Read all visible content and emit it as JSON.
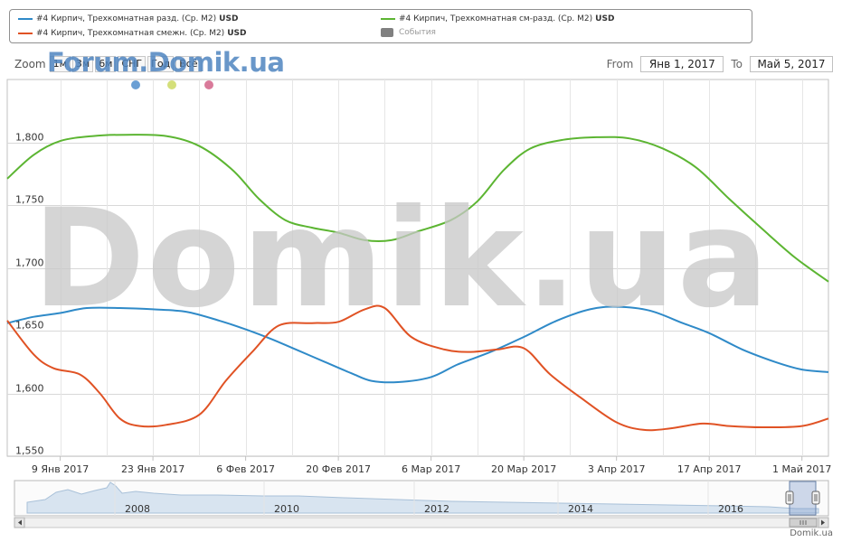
{
  "legend": {
    "items": [
      {
        "label": "#4 Кирпич, Трехкомнатная разд. (Ср. М2)",
        "unit": "USD",
        "color": "#2f8ac8",
        "marker": "line"
      },
      {
        "label": "#4 Кирпич, Трехкомнатная смежн. (Ср. М2)",
        "unit": "USD",
        "color": "#e05224",
        "marker": "line"
      },
      {
        "label": "#4 Кирпич, Трехкомнатная см-разд. (Ср. М2)",
        "unit": "USD",
        "color": "#5cb532",
        "marker": "line"
      },
      {
        "label": "События",
        "unit": "",
        "color": "#808080",
        "marker": "box"
      }
    ]
  },
  "zoom": {
    "label": "Zoom",
    "buttons": [
      "1м",
      "3м",
      "6м",
      "СНГ",
      "Год",
      "Всё"
    ]
  },
  "watermarks": {
    "top": "Forum.Domik.ua",
    "center": "Domik.ua"
  },
  "range": {
    "from_label": "From",
    "from_value": "Янв 1, 2017",
    "to_label": "To",
    "to_value": "Май 5, 2017"
  },
  "event_dots": [
    "#6a9fd4",
    "#d4df7a",
    "#d97a9a"
  ],
  "credit": "Domik.ua",
  "chart_data": {
    "type": "line",
    "x_start": "2017-01-01",
    "x_end": "2017-05-05",
    "xticks": [
      {
        "date": "2017-01-09",
        "label": "9 Янв 2017"
      },
      {
        "date": "2017-01-23",
        "label": "23 Янв 2017"
      },
      {
        "date": "2017-02-06",
        "label": "6 Фев 2017"
      },
      {
        "date": "2017-02-20",
        "label": "20 Фев 2017"
      },
      {
        "date": "2017-03-06",
        "label": "6 Мар 2017"
      },
      {
        "date": "2017-03-20",
        "label": "20 Мар 2017"
      },
      {
        "date": "2017-04-03",
        "label": "3 Апр 2017"
      },
      {
        "date": "2017-04-17",
        "label": "17 Апр 2017"
      },
      {
        "date": "2017-05-01",
        "label": "1 Май 2017"
      }
    ],
    "ylim": [
      1550,
      1850
    ],
    "yticks": [
      {
        "value": 1550,
        "label": "1,550"
      },
      {
        "value": 1600,
        "label": "1,600"
      },
      {
        "value": 1650,
        "label": "1,650"
      },
      {
        "value": 1700,
        "label": "1,700"
      },
      {
        "value": 1750,
        "label": "1,750"
      },
      {
        "value": 1800,
        "label": "1,800"
      }
    ],
    "grid": true,
    "series": [
      {
        "name": "#4 Кирпич, Трехкомнатная разд. (Ср. М2)",
        "color": "#2f8ac8",
        "points": [
          [
            "2017-01-01",
            1656
          ],
          [
            "2017-01-05",
            1661
          ],
          [
            "2017-01-09",
            1664
          ],
          [
            "2017-01-13",
            1668
          ],
          [
            "2017-01-18",
            1668
          ],
          [
            "2017-01-23",
            1667
          ],
          [
            "2017-01-28",
            1665
          ],
          [
            "2017-02-02",
            1658
          ],
          [
            "2017-02-06",
            1651
          ],
          [
            "2017-02-10",
            1643
          ],
          [
            "2017-02-14",
            1634
          ],
          [
            "2017-02-18",
            1625
          ],
          [
            "2017-02-22",
            1616
          ],
          [
            "2017-02-25",
            1610
          ],
          [
            "2017-03-01",
            1609
          ],
          [
            "2017-03-06",
            1613
          ],
          [
            "2017-03-10",
            1623
          ],
          [
            "2017-03-15",
            1633
          ],
          [
            "2017-03-20",
            1645
          ],
          [
            "2017-03-25",
            1658
          ],
          [
            "2017-03-30",
            1667
          ],
          [
            "2017-04-03",
            1669
          ],
          [
            "2017-04-08",
            1666
          ],
          [
            "2017-04-13",
            1656
          ],
          [
            "2017-04-17",
            1648
          ],
          [
            "2017-04-22",
            1635
          ],
          [
            "2017-04-27",
            1625
          ],
          [
            "2017-05-01",
            1619
          ],
          [
            "2017-05-05",
            1617
          ]
        ]
      },
      {
        "name": "#4 Кирпич, Трехкомнатная смежн. (Ср. М2)",
        "color": "#e05224",
        "points": [
          [
            "2017-01-01",
            1658
          ],
          [
            "2017-01-05",
            1631
          ],
          [
            "2017-01-08",
            1620
          ],
          [
            "2017-01-12",
            1615
          ],
          [
            "2017-01-15",
            1600
          ],
          [
            "2017-01-18",
            1580
          ],
          [
            "2017-01-21",
            1574
          ],
          [
            "2017-01-25",
            1575
          ],
          [
            "2017-01-30",
            1583
          ],
          [
            "2017-02-03",
            1610
          ],
          [
            "2017-02-07",
            1633
          ],
          [
            "2017-02-11",
            1654
          ],
          [
            "2017-02-16",
            1656
          ],
          [
            "2017-02-20",
            1657
          ],
          [
            "2017-02-24",
            1667
          ],
          [
            "2017-02-27",
            1668
          ],
          [
            "2017-03-03",
            1645
          ],
          [
            "2017-03-08",
            1635
          ],
          [
            "2017-03-12",
            1633
          ],
          [
            "2017-03-16",
            1635
          ],
          [
            "2017-03-20",
            1636
          ],
          [
            "2017-03-24",
            1615
          ],
          [
            "2017-03-29",
            1595
          ],
          [
            "2017-04-03",
            1577
          ],
          [
            "2017-04-07",
            1571
          ],
          [
            "2017-04-11",
            1572
          ],
          [
            "2017-04-16",
            1576
          ],
          [
            "2017-04-20",
            1574
          ],
          [
            "2017-04-25",
            1573
          ],
          [
            "2017-05-01",
            1574
          ],
          [
            "2017-05-05",
            1580
          ]
        ]
      },
      {
        "name": "#4 Кирпич, Трехкомнатная см-разд. (Ср. М2)",
        "color": "#5cb532",
        "points": [
          [
            "2017-01-01",
            1771
          ],
          [
            "2017-01-05",
            1790
          ],
          [
            "2017-01-09",
            1801
          ],
          [
            "2017-01-14",
            1805
          ],
          [
            "2017-01-19",
            1806
          ],
          [
            "2017-01-25",
            1805
          ],
          [
            "2017-01-30",
            1797
          ],
          [
            "2017-02-04",
            1778
          ],
          [
            "2017-02-08",
            1755
          ],
          [
            "2017-02-12",
            1738
          ],
          [
            "2017-02-16",
            1732
          ],
          [
            "2017-02-20",
            1728
          ],
          [
            "2017-02-24",
            1722
          ],
          [
            "2017-02-28",
            1722
          ],
          [
            "2017-03-04",
            1729
          ],
          [
            "2017-03-09",
            1738
          ],
          [
            "2017-03-13",
            1753
          ],
          [
            "2017-03-17",
            1778
          ],
          [
            "2017-03-21",
            1795
          ],
          [
            "2017-03-26",
            1802
          ],
          [
            "2017-03-31",
            1804
          ],
          [
            "2017-04-05",
            1803
          ],
          [
            "2017-04-10",
            1795
          ],
          [
            "2017-04-15",
            1780
          ],
          [
            "2017-04-20",
            1755
          ],
          [
            "2017-04-25",
            1731
          ],
          [
            "2017-04-30",
            1708
          ],
          [
            "2017-05-05",
            1689
          ]
        ]
      }
    ],
    "navigator": {
      "xticks": [
        "2008",
        "2010",
        "2012",
        "2014",
        "2016"
      ]
    }
  }
}
